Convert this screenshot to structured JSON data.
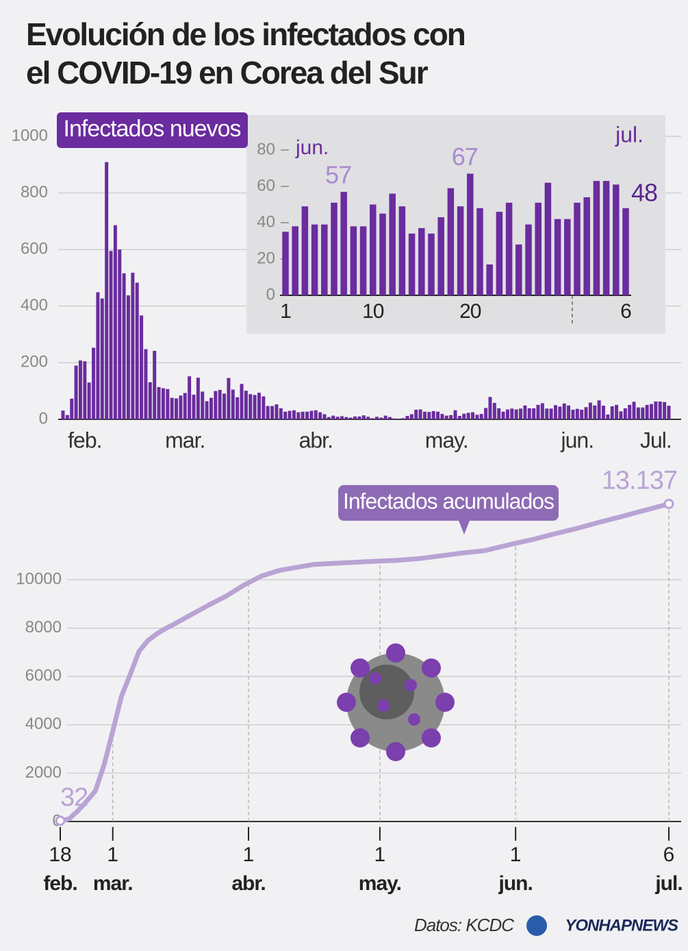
{
  "title_lines": [
    "Evolución de los infectados con",
    "el COVID-19 en Corea del Sur"
  ],
  "source": "Datos: KCDC",
  "logo": "YONHAPNEWS",
  "chart_data": [
    {
      "type": "bar",
      "title": "Infectados nuevos",
      "color": "#6a2c9e",
      "grid": true,
      "ylim": [
        0,
        1000
      ],
      "yticks": [
        0,
        200,
        400,
        600,
        800,
        1000
      ],
      "categories": [
        null,
        null,
        null,
        null,
        null,
        "feb.",
        null,
        null,
        null,
        null,
        null,
        null,
        null,
        null,
        null,
        null,
        null,
        null,
        null,
        null,
        null,
        null,
        null,
        null,
        null,
        null,
        null,
        null,
        "mar.",
        null,
        null,
        null,
        null,
        null,
        null,
        null,
        null,
        null,
        null,
        null,
        null,
        null,
        null,
        null,
        null,
        null,
        null,
        null,
        null,
        null,
        null,
        null,
        null,
        null,
        null,
        null,
        null,
        null,
        "abr.",
        null,
        null,
        null,
        null,
        null,
        null,
        null,
        null,
        null,
        null,
        null,
        null,
        null,
        null,
        null,
        null,
        null,
        null,
        null,
        null,
        null,
        null,
        null,
        null,
        null,
        null,
        null,
        null,
        null,
        "may.",
        null,
        null,
        null,
        null,
        null,
        null,
        null,
        null,
        null,
        null,
        null,
        null,
        null,
        null,
        null,
        null,
        null,
        null,
        null,
        null,
        null,
        null,
        null,
        null,
        null,
        null,
        null,
        null,
        null,
        "jun.",
        null,
        null,
        null,
        null,
        null,
        null,
        null,
        null,
        null,
        null,
        null,
        null,
        null,
        null,
        null,
        null,
        null,
        "Jul.",
        null,
        null,
        null
      ],
      "values": [
        31,
        15,
        73,
        190,
        208,
        205,
        130,
        253,
        449,
        427,
        909,
        595,
        686,
        600,
        516,
        438,
        518,
        483,
        367,
        248,
        131,
        242,
        114,
        110,
        107,
        76,
        74,
        84,
        93,
        152,
        87,
        147,
        98,
        64,
        76,
        100,
        104,
        91,
        146,
        105,
        78,
        125,
        101,
        89,
        86,
        94,
        81,
        47,
        47,
        53,
        39,
        27,
        30,
        32,
        25,
        27,
        27,
        30,
        32,
        25,
        18,
        8,
        13,
        9,
        11,
        8,
        6,
        10,
        10,
        14,
        9,
        4,
        9,
        6,
        13,
        8,
        3,
        2,
        4,
        12,
        18,
        34,
        35,
        27,
        26,
        29,
        27,
        19,
        13,
        15,
        32,
        12,
        20,
        23,
        25,
        16,
        19,
        40,
        79,
        58,
        39,
        27,
        35,
        38,
        35,
        38,
        49,
        39,
        39,
        51,
        57,
        38,
        38,
        50,
        45,
        56,
        49,
        34,
        37,
        34,
        43,
        59,
        49,
        67,
        48,
        17,
        46,
        51,
        28,
        39,
        51,
        62,
        42,
        42,
        51,
        54,
        63,
        63,
        61,
        48
      ]
    },
    {
      "type": "bar",
      "color": "#6a2c9e",
      "month_start": "jun.",
      "month_end": "jul.",
      "ylim": [
        0,
        80
      ],
      "yticks": [
        0,
        20,
        40,
        60,
        80
      ],
      "categories": [
        "1",
        null,
        null,
        null,
        null,
        null,
        null,
        null,
        null,
        "10",
        null,
        null,
        null,
        null,
        null,
        null,
        null,
        null,
        null,
        "20",
        null,
        null,
        null,
        null,
        null,
        null,
        null,
        null,
        null,
        null,
        null,
        null,
        null,
        null,
        null,
        "6"
      ],
      "values": [
        35,
        38,
        49,
        39,
        39,
        51,
        57,
        38,
        38,
        50,
        45,
        56,
        49,
        34,
        37,
        34,
        43,
        59,
        49,
        67,
        48,
        17,
        46,
        51,
        28,
        39,
        51,
        62,
        42,
        42,
        51,
        54,
        63,
        63,
        61,
        48
      ]
    },
    {
      "type": "line",
      "title": "Infectados acumulados",
      "color": "#b9a3d4",
      "grid": true,
      "ylim": [
        0,
        14000
      ],
      "yticks": [
        0,
        2000,
        4000,
        6000,
        8000,
        10000
      ],
      "xlim": [
        "02-18",
        "07-06"
      ],
      "xticks": [
        {
          "value": "02-18",
          "label": "18",
          "month": "feb."
        },
        {
          "value": "03-01",
          "label": "1",
          "month": "mar."
        },
        {
          "value": "04-01",
          "label": "1",
          "month": "abr."
        },
        {
          "value": "05-01",
          "label": "1",
          "month": "may."
        },
        {
          "value": "06-01",
          "label": "1",
          "month": "jun."
        },
        {
          "value": "07-06",
          "label": "6",
          "month": "jul."
        }
      ],
      "x": [
        "02-18",
        "02-20",
        "02-22",
        "02-24",
        "02-26",
        "02-28",
        "03-01",
        "03-03",
        "03-05",
        "03-07",
        "03-09",
        "03-11",
        "03-13",
        "03-15",
        "03-19",
        "03-23",
        "03-27",
        "03-31",
        "04-04",
        "04-08",
        "04-12",
        "04-16",
        "04-20",
        "04-25",
        "04-30",
        "05-05",
        "05-10",
        "05-15",
        "05-20",
        "05-25",
        "05-31",
        "06-05",
        "06-10",
        "06-15",
        "06-20",
        "06-25",
        "06-30",
        "07-06"
      ],
      "values": [
        32,
        104,
        433,
        833,
        1261,
        2337,
        3736,
        5186,
        6088,
        7041,
        7478,
        7755,
        7979,
        8162,
        8565,
        8961,
        9332,
        9786,
        10156,
        10384,
        10512,
        10635,
        10674,
        10718,
        10765,
        10806,
        10874,
        10991,
        11110,
        11206,
        11468,
        11668,
        11902,
        12121,
        12373,
        12602,
        12850,
        13137
      ],
      "value_labels": [
        "32",
        null,
        null,
        null,
        null,
        null,
        null,
        null,
        null,
        null,
        null,
        null,
        null,
        null,
        null,
        null,
        null,
        null,
        null,
        null,
        null,
        null,
        null,
        null,
        null,
        null,
        null,
        null,
        null,
        null,
        null,
        null,
        null,
        null,
        null,
        null,
        null,
        "13.137"
      ]
    }
  ]
}
